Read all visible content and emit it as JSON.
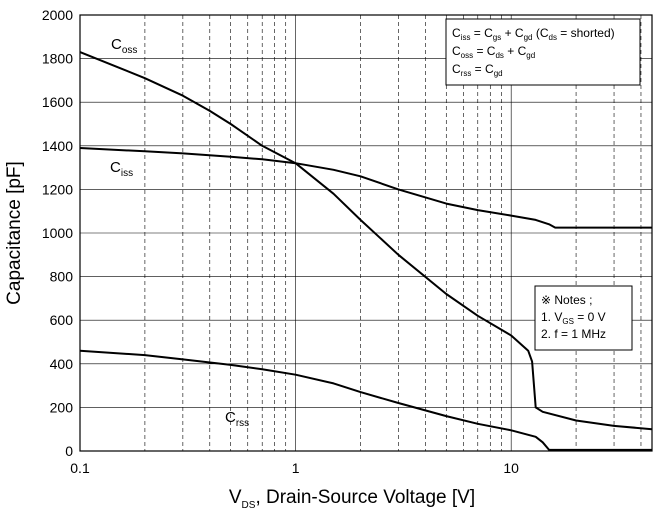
{
  "chart_data": {
    "type": "line",
    "xlabel": {
      "main": "V",
      "sub": "DS",
      "rest": ", Drain-Source Voltage [V]"
    },
    "ylabel": "Capacitance [pF]",
    "x_scale": "log",
    "xlim": [
      0.1,
      45
    ],
    "ylim": [
      0,
      2000
    ],
    "grid": true,
    "x_ticks": [
      0.1,
      1,
      10
    ],
    "x_tick_labels": [
      "0.1",
      "1",
      "10"
    ],
    "y_ticks": [
      0,
      200,
      400,
      600,
      800,
      1000,
      1200,
      1400,
      1600,
      1800,
      2000
    ],
    "y_tick_labels": [
      "0",
      "200",
      "400",
      "600",
      "800",
      "1000",
      "1200",
      "1400",
      "1600",
      "1800",
      "2000"
    ],
    "series": [
      {
        "name": "Coss",
        "label": {
          "main": "C",
          "sub": "oss"
        },
        "points": [
          [
            0.1,
            1830
          ],
          [
            0.15,
            1760
          ],
          [
            0.2,
            1710
          ],
          [
            0.3,
            1630
          ],
          [
            0.4,
            1560
          ],
          [
            0.5,
            1500
          ],
          [
            0.7,
            1400
          ],
          [
            1,
            1320
          ],
          [
            1.5,
            1180
          ],
          [
            2,
            1060
          ],
          [
            3,
            900
          ],
          [
            5,
            720
          ],
          [
            7,
            620
          ],
          [
            10,
            530
          ],
          [
            12,
            460
          ],
          [
            12.5,
            410
          ],
          [
            13,
            200
          ],
          [
            14,
            180
          ],
          [
            20,
            140
          ],
          [
            30,
            115
          ],
          [
            45,
            100
          ]
        ]
      },
      {
        "name": "Ciss",
        "label": {
          "main": "C",
          "sub": "iss"
        },
        "points": [
          [
            0.1,
            1390
          ],
          [
            0.2,
            1375
          ],
          [
            0.3,
            1365
          ],
          [
            0.5,
            1350
          ],
          [
            0.7,
            1338
          ],
          [
            1,
            1320
          ],
          [
            1.5,
            1290
          ],
          [
            2,
            1260
          ],
          [
            3,
            1200
          ],
          [
            5,
            1135
          ],
          [
            7,
            1105
          ],
          [
            10,
            1080
          ],
          [
            13,
            1060
          ],
          [
            15,
            1040
          ],
          [
            16,
            1025
          ],
          [
            20,
            1025
          ],
          [
            30,
            1025
          ],
          [
            45,
            1025
          ]
        ]
      },
      {
        "name": "Crss",
        "label": {
          "main": "C",
          "sub": "rss"
        },
        "points": [
          [
            0.1,
            460
          ],
          [
            0.2,
            440
          ],
          [
            0.3,
            420
          ],
          [
            0.5,
            395
          ],
          [
            0.7,
            375
          ],
          [
            1,
            350
          ],
          [
            1.5,
            310
          ],
          [
            2,
            270
          ],
          [
            3,
            220
          ],
          [
            5,
            160
          ],
          [
            7,
            125
          ],
          [
            10,
            95
          ],
          [
            13,
            65
          ],
          [
            14,
            40
          ],
          [
            15,
            5
          ],
          [
            20,
            5
          ],
          [
            30,
            5
          ],
          [
            45,
            5
          ]
        ]
      }
    ],
    "legend": [
      [
        {
          "t": "C"
        },
        {
          "t": "iss",
          "s": 1
        },
        {
          "t": " = C"
        },
        {
          "t": "gs",
          "s": 1
        },
        {
          "t": " + C"
        },
        {
          "t": "gd",
          "s": 1
        },
        {
          "t": " (C"
        },
        {
          "t": "ds",
          "s": 1
        },
        {
          "t": " = shorted)"
        }
      ],
      [
        {
          "t": "C"
        },
        {
          "t": "oss",
          "s": 1
        },
        {
          "t": " = C"
        },
        {
          "t": "ds",
          "s": 1
        },
        {
          "t": " + C"
        },
        {
          "t": "gd",
          "s": 1
        }
      ],
      [
        {
          "t": "C"
        },
        {
          "t": "rss",
          "s": 1
        },
        {
          "t": " = C"
        },
        {
          "t": "gd",
          "s": 1
        }
      ]
    ],
    "legend_position": "top-right",
    "notes": [
      [
        {
          "t": "※ Notes ;"
        }
      ],
      [
        {
          "t": "1. V"
        },
        {
          "t": "GS",
          "s": 1
        },
        {
          "t": " = 0 V"
        }
      ],
      [
        {
          "t": "2. f = 1 MHz"
        }
      ]
    ]
  }
}
